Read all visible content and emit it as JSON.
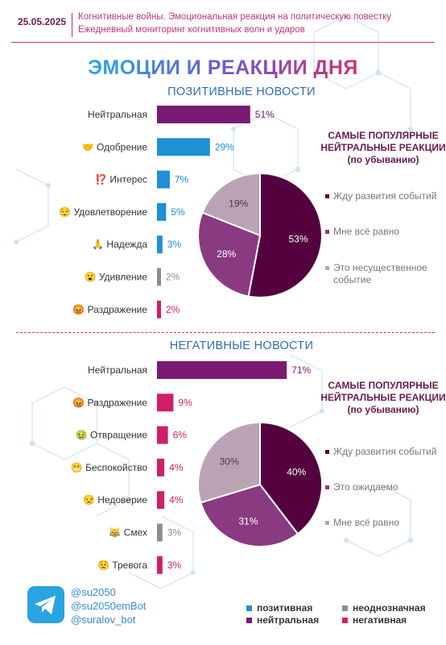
{
  "header": {
    "date": "25.05.2025",
    "line1": "Когнитивные войны. Эмоциональная реакция на политическую повестку",
    "line2": "Ежедневный мониторинг когнитивных волн и ударов"
  },
  "title": "ЭМОЦИИ И РЕАКЦИИ ДНЯ",
  "colors": {
    "positive": "#1e90d6",
    "neutral": "#7a1a72",
    "ambiguous": "#8c8c8c",
    "negative": "#d11e6a",
    "pie_dark": "#54003f",
    "pie_mid": "#8a3a80",
    "pie_light": "#bba3b6"
  },
  "chart_data": [
    {
      "type": "bar",
      "title": "ПОЗИТИВНЫЕ НОВОСТИ",
      "unit": "%",
      "categories": [
        "Нейтральная",
        "Одобрение",
        "Интерес",
        "Удовлетворение",
        "Надежда",
        "Удивление",
        "Раздражение"
      ],
      "emoji": [
        "",
        "🤝",
        "⁉️",
        "😌",
        "🙏",
        "😮",
        "😡"
      ],
      "values": [
        51,
        29,
        7,
        5,
        3,
        2,
        2
      ],
      "value_labels": [
        "51%",
        "29%",
        "7%",
        "5%",
        "3%",
        "2%",
        "2%"
      ],
      "category_types": [
        "neutral",
        "positive",
        "positive",
        "positive",
        "positive",
        "ambiguous",
        "negative"
      ]
    },
    {
      "type": "pie",
      "title_lines": [
        "САМЫЕ ПОПУЛЯРНЫЕ",
        "НЕЙТРАЛЬНЫЕ РЕАКЦИИ",
        "(по убыванию)"
      ],
      "slices": [
        {
          "label": "Жду развития событий",
          "value": 53,
          "value_label": "53%"
        },
        {
          "label": "Мне всё равно",
          "value": 28,
          "value_label": "28%"
        },
        {
          "label": "Это несущественное событие",
          "value": 19,
          "value_label": "19%"
        }
      ]
    },
    {
      "type": "bar",
      "title": "НЕГАТИВНЫЕ НОВОСТИ",
      "unit": "%",
      "categories": [
        "Нейтральная",
        "Раздражение",
        "Отвращение",
        "Беспокойство",
        "Недоверие",
        "Смех",
        "Тревога"
      ],
      "emoji": [
        "",
        "😡",
        "🤢",
        "😬",
        "😒",
        "😹",
        "😟"
      ],
      "values": [
        71,
        9,
        6,
        4,
        4,
        3,
        3
      ],
      "value_labels": [
        "71%",
        "9%",
        "6%",
        "4%",
        "4%",
        "3%",
        "3%"
      ],
      "category_types": [
        "neutral",
        "negative",
        "negative",
        "negative",
        "negative",
        "ambiguous",
        "negative"
      ]
    },
    {
      "type": "pie",
      "title_lines": [
        "САМЫЕ ПОПУЛЯРНЫЕ",
        "НЕЙТРАЛЬНЫЕ РЕАКЦИИ",
        "(по убыванию)"
      ],
      "slices": [
        {
          "label": "Жду развития событий",
          "value": 40,
          "value_label": "40%"
        },
        {
          "label": "Это ожидаемо",
          "value": 31,
          "value_label": "31%"
        },
        {
          "label": "Мне всё равно",
          "value": 30,
          "value_label": "30%"
        }
      ]
    }
  ],
  "footer": {
    "telegram_icon": "telegram-icon",
    "handles": [
      "@su2050",
      "@su2050emBot",
      "@suralov_bot"
    ],
    "legend": [
      {
        "label": "позитивная",
        "type": "positive"
      },
      {
        "label": "неоднозначная",
        "type": "ambiguous"
      },
      {
        "label": "нейтральная",
        "type": "neutral"
      },
      {
        "label": "негативная",
        "type": "negative"
      }
    ]
  }
}
